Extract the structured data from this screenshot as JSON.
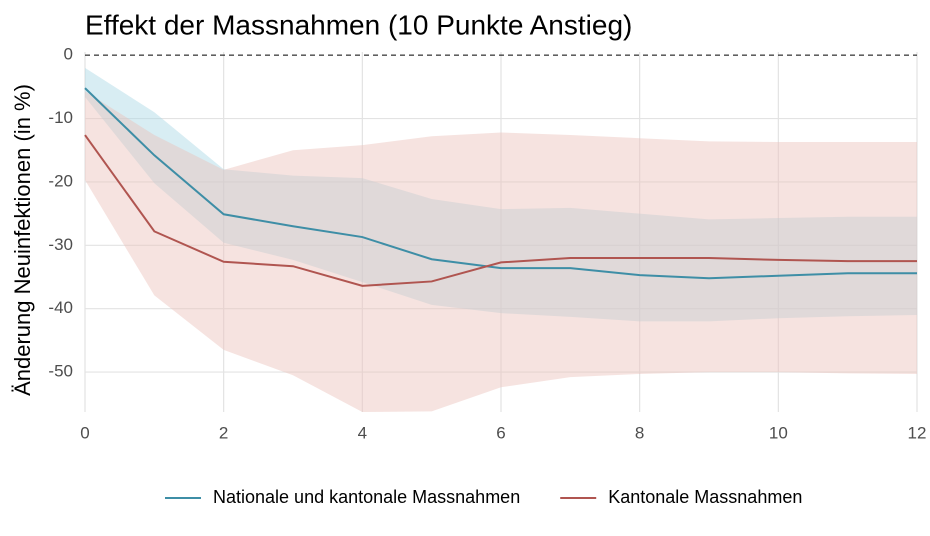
{
  "chart_data": {
    "type": "line",
    "title": "Effekt der Massnahmen (10 Punkte Anstieg)",
    "y_label": "Änderung Neuinfektionen (in %)",
    "x": [
      0,
      1,
      2,
      3,
      4,
      5,
      6,
      7,
      8,
      9,
      10,
      11,
      12
    ],
    "series": [
      {
        "name": "Nationale und kantonale Massnahmen",
        "color": "#3e8ea6",
        "band_color": "#a9d6e5",
        "values": [
          -5.2,
          -15.8,
          -25.1,
          -27,
          -28.7,
          -32.2,
          -33.6,
          -33.6,
          -34.7,
          -35.2,
          -34.8,
          -34.4,
          -34.4
        ],
        "upper": [
          -2,
          -9,
          -18,
          -19,
          -19.4,
          -22.7,
          -24.3,
          -24.1,
          -25,
          -25.9,
          -25.7,
          -25.5,
          -25.5
        ],
        "lower": [
          -6.6,
          -20.2,
          -29.6,
          -32.3,
          -35.8,
          -39.4,
          -40.7,
          -41.3,
          -42,
          -42,
          -41.5,
          -41.2,
          -41
        ]
      },
      {
        "name": "Kantonale Massnahmen",
        "color": "#b05550",
        "band_color": "#ebc0bb",
        "values": [
          -12.6,
          -27.8,
          -32.6,
          -33.3,
          -36.4,
          -35.7,
          -32.7,
          -32,
          -32,
          -32,
          -32.3,
          -32.5,
          -32.5
        ],
        "upper": [
          -5.7,
          -12.6,
          -18.1,
          -15,
          -14.2,
          -12.8,
          -12.2,
          -12.6,
          -13.1,
          -13.6,
          -13.7,
          -13.7,
          -13.7
        ],
        "lower": [
          -19.7,
          -37.9,
          -46.5,
          -50.5,
          -56.3,
          -56.2,
          -52.4,
          -50.8,
          -50.3,
          -50,
          -50,
          -50.2,
          -50.3
        ]
      }
    ],
    "xlim": [
      0,
      12
    ],
    "xticks": [
      0,
      2,
      4,
      6,
      8,
      10,
      12
    ],
    "ylim": [
      -56.3,
      0.5
    ],
    "yticks": [
      0,
      -10,
      -20,
      -30,
      -40,
      -50
    ],
    "reference_line": 0,
    "grid": true,
    "legend": "bottom"
  }
}
